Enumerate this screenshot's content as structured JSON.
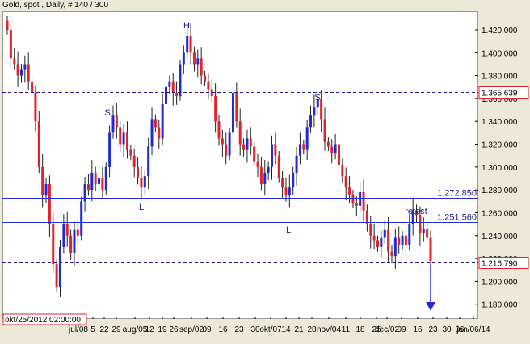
{
  "window": {
    "title": "Gold, spot , Daily, # 140 / 300"
  },
  "colors": {
    "bull": "#1f2bd6",
    "bear": "#e3232b",
    "wick": "#202020",
    "line": "#1f2bd6",
    "dash": "#1a1a8c",
    "arrow": "#1f2bd6"
  },
  "chart_data": {
    "type": "candlestick",
    "ylim": [
      1172000,
      1432000
    ],
    "yticks": [
      "1.420,000",
      "1.400,000",
      "1.380,000",
      "1.360,000",
      "1.340,000",
      "1.320,000",
      "1.300,000",
      "1.280,000",
      "1.260,000",
      "1.240,000",
      "1.220,000",
      "1.200,000",
      "1.180,000"
    ],
    "ytick_values": [
      1420000,
      1400000,
      1380000,
      1360000,
      1340000,
      1320000,
      1300000,
      1280000,
      1260000,
      1240000,
      1220000,
      1200000,
      1180000
    ],
    "xticks": [
      "jul/08",
      "5",
      "22",
      "29",
      "aug/05",
      "12",
      "19",
      "26",
      "sep/02",
      "09",
      "16",
      "23",
      "30",
      "okt/07",
      "14",
      "21",
      "28",
      "nov/04",
      "11",
      "18",
      "25",
      "dec/02",
      "09",
      "16",
      "23",
      "30",
      "06",
      "jan/06/14"
    ],
    "cursor_label": "okt/25/2012 02:00:00",
    "levels": [
      {
        "value": 1365639,
        "label": "1.365,639",
        "style": "dashed",
        "boxed": true
      },
      {
        "value": 1272850,
        "label": "1.272,850",
        "style": "solid",
        "boxed": false
      },
      {
        "value": 1251560,
        "label": "1.251,560",
        "style": "solid",
        "boxed": false
      },
      {
        "value": 1216790,
        "label": "1.216,790",
        "style": "dashed",
        "boxed": true
      }
    ],
    "annotations": [
      "S",
      "H",
      "S",
      "L",
      "L",
      "retest"
    ],
    "closes": [
      1420000,
      1395000,
      1390000,
      1380000,
      1385000,
      1390000,
      1375000,
      1365000,
      1340000,
      1300000,
      1275000,
      1285000,
      1250000,
      1215000,
      1195000,
      1230000,
      1250000,
      1240000,
      1225000,
      1245000,
      1240000,
      1270000,
      1285000,
      1280000,
      1295000,
      1285000,
      1290000,
      1280000,
      1300000,
      1330000,
      1345000,
      1335000,
      1320000,
      1330000,
      1315000,
      1310000,
      1300000,
      1290000,
      1282000,
      1292000,
      1318000,
      1342000,
      1335000,
      1325000,
      1355000,
      1370000,
      1375000,
      1365000,
      1362000,
      1390000,
      1400000,
      1415000,
      1400000,
      1390000,
      1395000,
      1380000,
      1375000,
      1368000,
      1362000,
      1340000,
      1325000,
      1320000,
      1310000,
      1330000,
      1365000,
      1340000,
      1320000,
      1315000,
      1325000,
      1318000,
      1305000,
      1300000,
      1285000,
      1295000,
      1300000,
      1320000,
      1310000,
      1290000,
      1282000,
      1275000,
      1282000,
      1295000,
      1310000,
      1320000,
      1315000,
      1335000,
      1345000,
      1352000,
      1360000,
      1342000,
      1322000,
      1318000,
      1312000,
      1320000,
      1302000,
      1292000,
      1282000,
      1276000,
      1268000,
      1266000,
      1278000,
      1262000,
      1250000,
      1240000,
      1236000,
      1230000,
      1238000,
      1245000,
      1226000,
      1222000,
      1238000,
      1232000,
      1240000,
      1232000,
      1250000,
      1262000,
      1258000,
      1242000,
      1246000,
      1238000,
      1218000
    ]
  }
}
